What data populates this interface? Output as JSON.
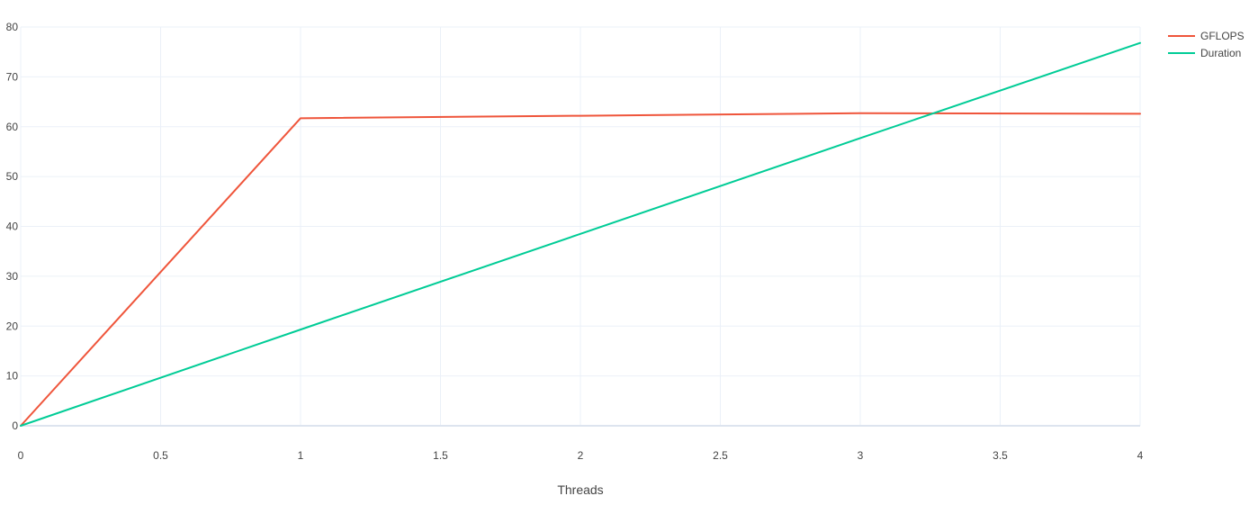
{
  "chart_data": {
    "type": "line",
    "title": "",
    "xlabel": "Threads",
    "ylabel": "",
    "xlim": [
      0,
      4
    ],
    "ylim": [
      0,
      80
    ],
    "x_ticks": [
      0,
      0.5,
      1,
      1.5,
      2,
      2.5,
      3,
      3.5,
      4
    ],
    "y_ticks": [
      0,
      10,
      20,
      30,
      40,
      50,
      60,
      70,
      80
    ],
    "grid": true,
    "legend_position": "top-right",
    "series": [
      {
        "name": "GFLOPS",
        "color": "#EF553B",
        "x": [
          0,
          1,
          2,
          3,
          4
        ],
        "y": [
          0,
          61.7,
          62.2,
          62.7,
          62.6
        ]
      },
      {
        "name": "Duration",
        "color": "#00CC96",
        "x": [
          0,
          1,
          2,
          3,
          4
        ],
        "y": [
          0,
          19.3,
          38.5,
          57.7,
          76.8
        ]
      }
    ]
  }
}
